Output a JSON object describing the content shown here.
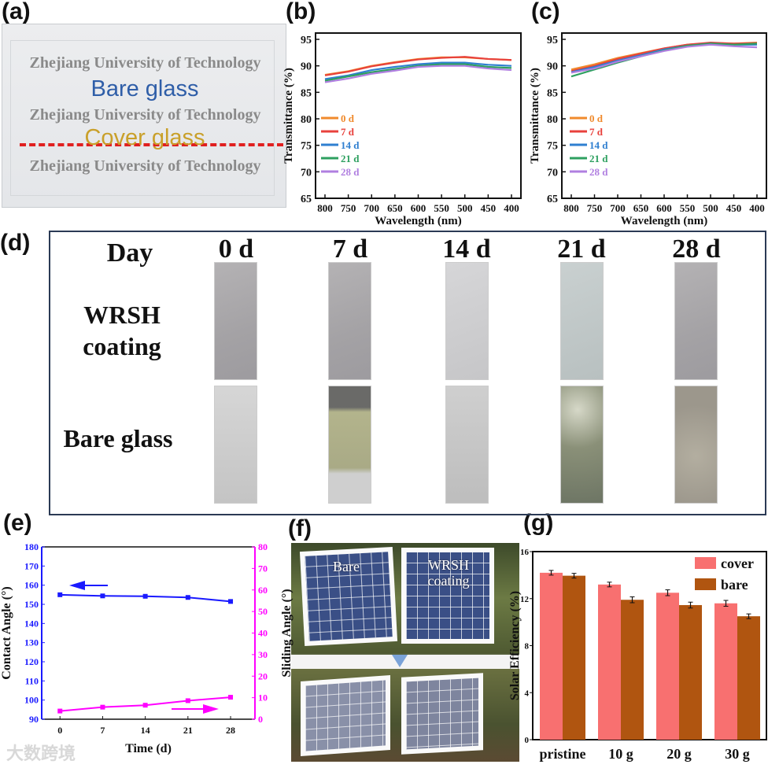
{
  "panel_labels": {
    "a": "(a)",
    "b": "(b)",
    "c": "(c)",
    "d": "(d)",
    "e": "(e)",
    "f": "(f)",
    "g": "(g)"
  },
  "panel_a": {
    "university": "Zhejiang University of Technology",
    "bare": "Bare glass",
    "cover": "Cover glass",
    "bare_color": "#2f5ea8",
    "cover_color": "#c9a02a",
    "divider_color": "#e02020"
  },
  "panel_d": {
    "day_label": "Day",
    "days": [
      "0 d",
      "7 d",
      "14 d",
      "21 d",
      "28 d"
    ],
    "row1": "WRSH coating",
    "row2": "Bare glass"
  },
  "panel_f": {
    "bare_label": "Bare",
    "coated_label": "WRSH coating"
  },
  "watermark": "大数跨境",
  "chart_data": [
    {
      "id": "b",
      "type": "line",
      "title": "",
      "xlabel": "Wavelength (nm)",
      "ylabel": "Transmittance (%)",
      "xlim": [
        800,
        400
      ],
      "ylim": [
        65,
        95
      ],
      "xticks": [
        800,
        750,
        700,
        650,
        600,
        550,
        500,
        450,
        400
      ],
      "yticks": [
        65,
        70,
        75,
        80,
        85,
        90,
        95
      ],
      "x": [
        800,
        750,
        700,
        650,
        600,
        550,
        500,
        450,
        400
      ],
      "series": [
        {
          "name": "0 d",
          "color": "#f08a2c",
          "values": [
            88.3,
            89.0,
            90.0,
            90.7,
            91.3,
            91.6,
            91.6,
            91.3,
            91.1
          ]
        },
        {
          "name": "7 d",
          "color": "#e8413c",
          "values": [
            88.2,
            88.9,
            89.9,
            90.6,
            91.2,
            91.5,
            91.7,
            91.3,
            91.1
          ]
        },
        {
          "name": "14 d",
          "color": "#2f7fd0",
          "values": [
            87.5,
            88.2,
            89.2,
            89.8,
            90.3,
            90.6,
            90.6,
            90.2,
            90.0
          ]
        },
        {
          "name": "21 d",
          "color": "#2ea060",
          "values": [
            87.2,
            88.0,
            88.8,
            89.4,
            90.0,
            90.3,
            90.3,
            89.8,
            89.6
          ]
        },
        {
          "name": "28 d",
          "color": "#b07fe0",
          "values": [
            86.9,
            87.6,
            88.5,
            89.1,
            89.8,
            90.0,
            90.0,
            89.5,
            89.2
          ]
        }
      ],
      "legend": "center-left"
    },
    {
      "id": "c",
      "type": "line",
      "title": "",
      "xlabel": "Wavelength (nm)",
      "ylabel": "Transmittance (%)",
      "xlim": [
        800,
        400
      ],
      "ylim": [
        65,
        95
      ],
      "xticks": [
        800,
        750,
        700,
        650,
        600,
        550,
        500,
        450,
        400
      ],
      "yticks": [
        65,
        70,
        75,
        80,
        85,
        90,
        95
      ],
      "x": [
        800,
        750,
        700,
        650,
        600,
        550,
        500,
        450,
        400
      ],
      "series": [
        {
          "name": "0 d",
          "color": "#f08a2c",
          "values": [
            89.3,
            90.3,
            91.5,
            92.4,
            93.3,
            94.0,
            94.3,
            94.2,
            94.4
          ]
        },
        {
          "name": "7 d",
          "color": "#e8413c",
          "values": [
            89.0,
            90.0,
            91.3,
            92.3,
            93.3,
            94.0,
            94.4,
            94.2,
            94.3
          ]
        },
        {
          "name": "14 d",
          "color": "#2f7fd0",
          "values": [
            88.8,
            89.8,
            91.0,
            92.0,
            93.1,
            93.8,
            94.2,
            94.0,
            94.0
          ]
        },
        {
          "name": "21 d",
          "color": "#2ea060",
          "values": [
            88.0,
            89.3,
            90.6,
            91.8,
            92.9,
            93.8,
            94.2,
            94.0,
            94.2
          ]
        },
        {
          "name": "28 d",
          "color": "#b07fe0",
          "values": [
            88.7,
            89.5,
            90.8,
            91.8,
            92.8,
            93.6,
            94.0,
            93.7,
            93.5
          ]
        }
      ],
      "legend": "center-left"
    },
    {
      "id": "e",
      "type": "line",
      "xlabel": "Time (d)",
      "ylabel": "Contact Angle (°)",
      "ylabel2": "Sliding Angle (°)",
      "xlim": [
        -3,
        32
      ],
      "ylim": [
        90,
        180
      ],
      "ylim2": [
        0,
        80
      ],
      "xticks": [
        0,
        7,
        14,
        21,
        28
      ],
      "yticks": [
        90,
        100,
        110,
        120,
        130,
        140,
        150,
        160,
        170,
        180
      ],
      "yticks2": [
        0,
        10,
        20,
        30,
        40,
        50,
        60,
        70,
        80
      ],
      "x": [
        0,
        7,
        14,
        21,
        28
      ],
      "series": [
        {
          "name": "Contact Angle",
          "axis": "left",
          "color": "#1a1aff",
          "values": [
            155.0,
            154.4,
            154.2,
            153.6,
            151.5
          ]
        },
        {
          "name": "Sliding Angle",
          "axis": "right",
          "color": "#ff00ff",
          "values": [
            3.8,
            5.6,
            6.5,
            8.6,
            10.2
          ]
        }
      ]
    },
    {
      "id": "g",
      "type": "bar",
      "xlabel": "",
      "ylabel": "Solar Efficiency (%)",
      "ylim": [
        0,
        16
      ],
      "yticks": [
        0,
        4,
        8,
        12,
        16
      ],
      "categories": [
        "pristine",
        "10 g",
        "20 g",
        "30 g"
      ],
      "series": [
        {
          "name": "cover",
          "color": "#f87070",
          "values": [
            14.2,
            13.2,
            12.5,
            11.6
          ],
          "errors": [
            0.2,
            0.2,
            0.25,
            0.25
          ]
        },
        {
          "name": "bare",
          "color": "#b05510",
          "values": [
            13.95,
            11.9,
            11.45,
            10.5
          ],
          "errors": [
            0.2,
            0.25,
            0.25,
            0.2
          ]
        }
      ],
      "legend": "top-right"
    }
  ]
}
